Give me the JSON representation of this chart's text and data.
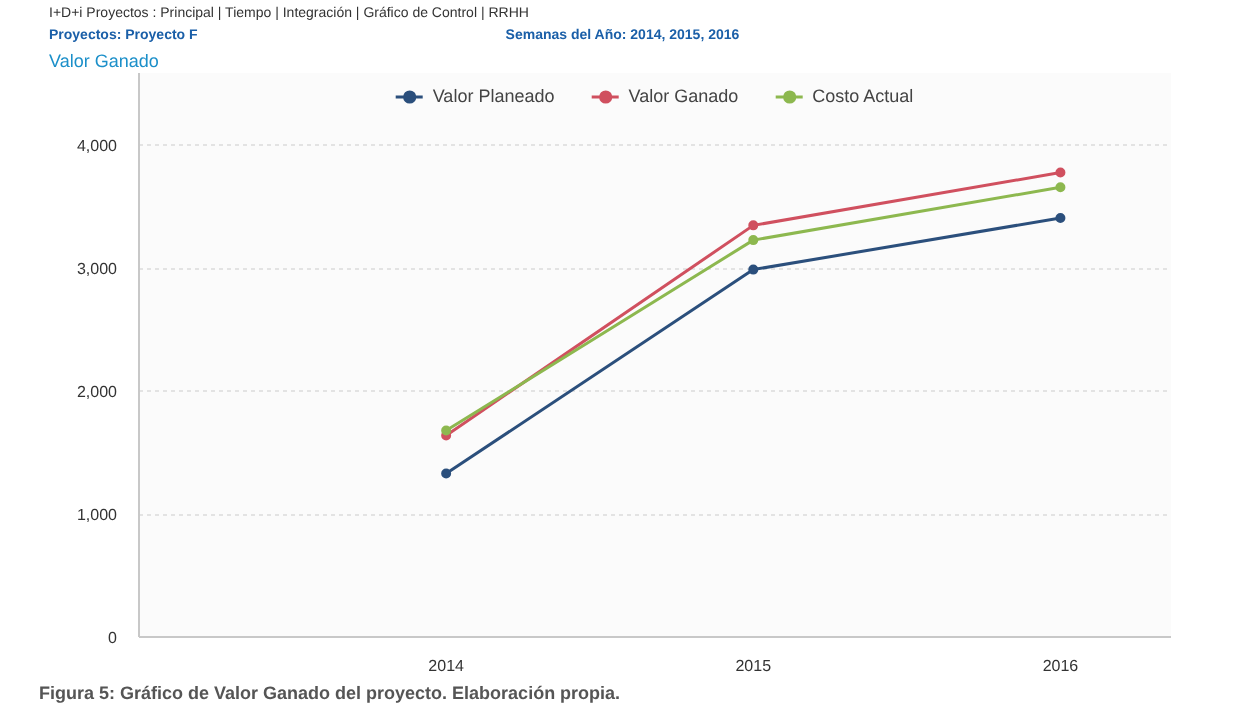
{
  "chart_data": {
    "type": "line",
    "title": "Valor Ganado",
    "subtitle": "I+D+i Proyectos : Principal | Tiempo | Integración | Gráfico de Control | RRHH",
    "annotations": [
      "Proyectos: Proyecto F",
      "Semanas del Año: 2014, 2015, 2016",
      "Figura 5: Gráfico de Valor Ganado del proyecto. Elaboración propia."
    ],
    "categories": [
      "2014",
      "2015",
      "2016"
    ],
    "series": [
      {
        "name": "Valor Planeado",
        "color": "#2b4f7c",
        "values": [
          1330,
          2990,
          3410
        ]
      },
      {
        "name": "Valor Ganado",
        "color": "#d0505f",
        "values": [
          1640,
          3350,
          3780
        ]
      },
      {
        "name": "Costo Actual",
        "color": "#8db84f",
        "values": [
          1680,
          3230,
          3660
        ]
      }
    ],
    "ylim": [
      0,
      4590
    ],
    "yticks": [
      {
        "value": 0,
        "label": "0"
      },
      {
        "value": 1000,
        "label": "1,000"
      },
      {
        "value": 2000,
        "label": "2,000"
      },
      {
        "value": 3000,
        "label": "3,000"
      },
      {
        "value": 4000,
        "label": "4,000"
      }
    ],
    "grid": "y",
    "legend": "top",
    "marker": "circle",
    "line_style": "solid"
  }
}
